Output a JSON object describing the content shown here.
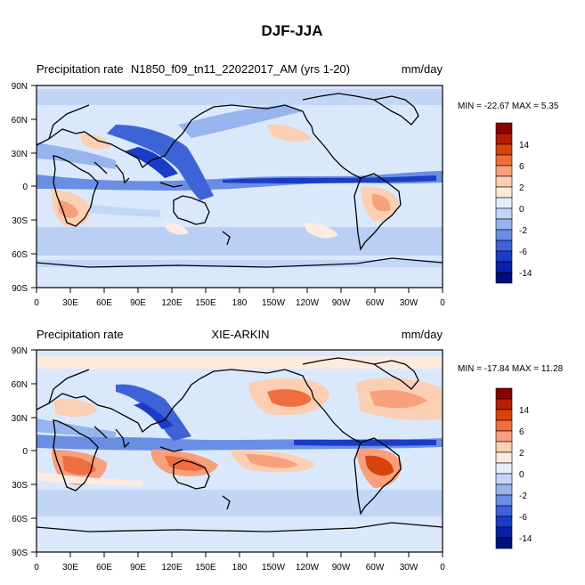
{
  "figure_title": "DJF-JJA",
  "chart_data": [
    {
      "type": "heatmap",
      "panel": "model",
      "left_title": "Precipitation rate",
      "center_title": "N1850_f09_tn11_22022017_AM (yrs 1-20)",
      "right_title": "mm/day",
      "stats_text": "MIN = -22.67 MAX =   5.35",
      "min": -22.67,
      "max": 5.35,
      "x_ticks": [
        "0",
        "30E",
        "60E",
        "90E",
        "120E",
        "150E",
        "180",
        "150W",
        "120W",
        "90W",
        "60W",
        "30W",
        "0"
      ],
      "y_ticks": [
        "90N",
        "60N",
        "30N",
        "0",
        "30S",
        "60S",
        "90S"
      ],
      "xlim": [
        0,
        360
      ],
      "ylim": [
        -90,
        90
      ]
    },
    {
      "type": "heatmap",
      "panel": "observations",
      "left_title": "Precipitation rate",
      "center_title": "XIE-ARKIN",
      "right_title": "mm/day",
      "stats_text": "MIN = -17.84 MAX =  11.28",
      "min": -17.84,
      "max": 11.28,
      "x_ticks": [
        "0",
        "30E",
        "60E",
        "90E",
        "120E",
        "150E",
        "180",
        "150W",
        "120W",
        "90W",
        "60W",
        "30W",
        "0"
      ],
      "y_ticks": [
        "90N",
        "60N",
        "30N",
        "0",
        "30S",
        "60S",
        "90S"
      ],
      "xlim": [
        0,
        360
      ],
      "ylim": [
        -90,
        90
      ]
    }
  ],
  "colorbar": {
    "labels": [
      "14",
      "6",
      "2",
      "0",
      "-2",
      "-6",
      "-14"
    ],
    "colors": [
      "#8b0000",
      "#b31e00",
      "#d8430c",
      "#ef6e3f",
      "#f7a07c",
      "#fbcfb4",
      "#fdebdf",
      "#e4effa",
      "#c2d6f6",
      "#97b4ee",
      "#6a8ee4",
      "#3d63d6",
      "#1a3cc6",
      "#0a1fa8",
      "#000f7a"
    ]
  }
}
